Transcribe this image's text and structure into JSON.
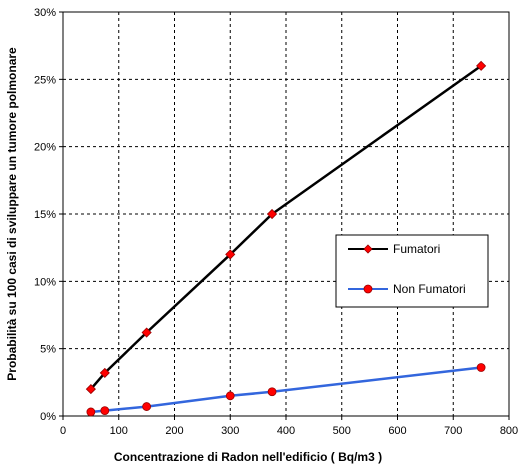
{
  "chart_data": {
    "type": "line",
    "xlabel": "Concentrazione di Radon nell'edificio ( Bq/m3 )",
    "ylabel": "Probabilità su 100 casi di sviluppare un tumore polmonare",
    "xlim": [
      0,
      800
    ],
    "ylim": [
      0,
      30
    ],
    "x_ticks": [
      "0",
      "100",
      "200",
      "300",
      "400",
      "500",
      "600",
      "700",
      "800"
    ],
    "y_ticks": [
      "0%",
      "5%",
      "10%",
      "15%",
      "20%",
      "25%",
      "30%"
    ],
    "x_tick_values": [
      0,
      100,
      200,
      300,
      400,
      500,
      600,
      700,
      800
    ],
    "y_tick_values": [
      0,
      5,
      10,
      15,
      20,
      25,
      30
    ],
    "grid": true,
    "legend_position": "right",
    "series": [
      {
        "name": "Fumatori",
        "color": "#000000",
        "marker_color": "#ff0000",
        "marker": "diamond",
        "x": [
          50,
          75,
          150,
          300,
          375,
          750
        ],
        "y": [
          2.0,
          3.2,
          6.2,
          12.0,
          15.0,
          26.0
        ]
      },
      {
        "name": "Non Fumatori",
        "color": "#3366dd",
        "marker_color": "#ff0000",
        "marker": "circle",
        "x": [
          50,
          75,
          150,
          300,
          375,
          750
        ],
        "y": [
          0.3,
          0.4,
          0.7,
          1.5,
          1.8,
          3.6
        ]
      }
    ]
  }
}
